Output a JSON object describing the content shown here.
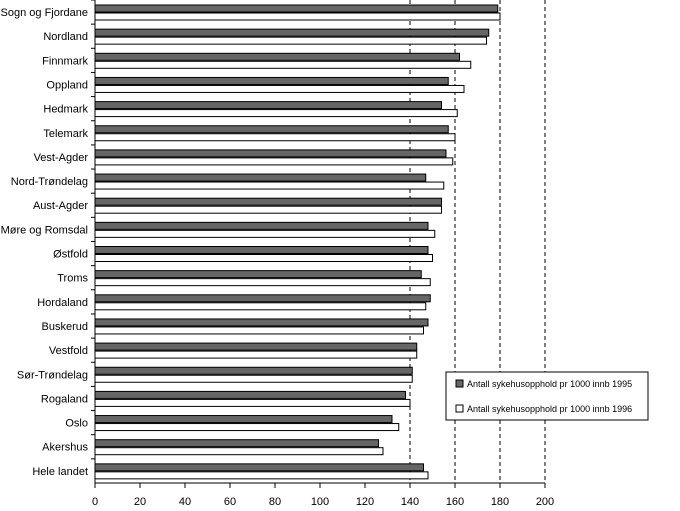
{
  "chart_data": {
    "type": "bar",
    "orientation": "horizontal",
    "title": "",
    "xlabel": "",
    "ylabel": "",
    "xlim": [
      0,
      200
    ],
    "x_ticks": [
      0,
      20,
      40,
      60,
      80,
      100,
      120,
      140,
      160,
      180,
      200
    ],
    "gridlines": [
      140,
      160,
      180,
      200
    ],
    "categories": [
      "Sogn og Fjordane",
      "Nordland",
      "Finnmark",
      "Oppland",
      "Hedmark",
      "Telemark",
      "Vest-Agder",
      "Nord-Trøndelag",
      "Aust-Agder",
      "Møre og Romsdal",
      "Østfold",
      "Troms",
      "Hordaland",
      "Buskerud",
      "Vestfold",
      "Sør-Trøndelag",
      "Rogaland",
      "Oslo",
      "Akershus",
      "Hele landet"
    ],
    "series": [
      {
        "name": "Antall sykehusopphold pr 1000 innb 1995",
        "color": "#666666",
        "values": [
          179,
          175,
          162,
          157,
          154,
          157,
          156,
          147,
          154,
          148,
          148,
          145,
          149,
          148,
          143,
          141,
          138,
          132,
          126,
          146
        ]
      },
      {
        "name": "Antall sykehusopphold pr 1000 innb 1996",
        "color": "#ffffff",
        "values": [
          180,
          174,
          167,
          164,
          161,
          160,
          159,
          155,
          154,
          151,
          150,
          149,
          147,
          146,
          143,
          141,
          140,
          135,
          128,
          148
        ]
      }
    ],
    "legend_position": "right-lower"
  }
}
